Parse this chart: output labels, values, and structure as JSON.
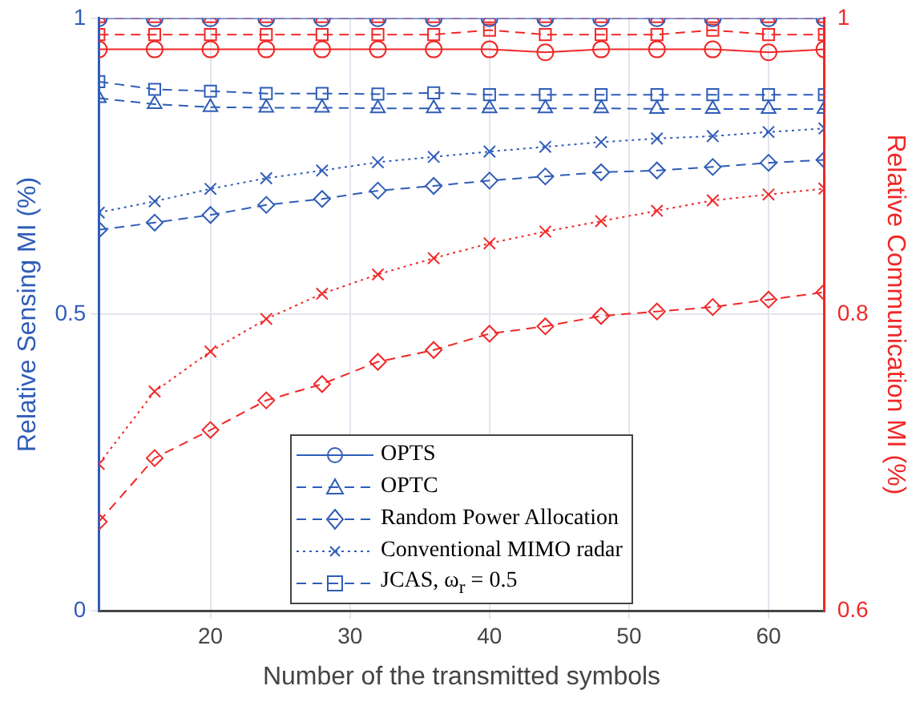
{
  "chart_data": {
    "type": "line",
    "xlabel": "Number of the transmitted symbols",
    "ylabel": "Relative Sensing MI (%)",
    "y2label": "Relative Communication MI (%)",
    "x": [
      12,
      16,
      20,
      24,
      28,
      32,
      36,
      40,
      44,
      48,
      52,
      56,
      60,
      64
    ],
    "xlim": [
      12,
      64
    ],
    "xticks": [
      20,
      30,
      40,
      50,
      60
    ],
    "ylim": [
      0,
      1
    ],
    "yticks": [
      0,
      0.5,
      1
    ],
    "y2lim": [
      0.6,
      1
    ],
    "y2ticks": [
      0.6,
      0.8,
      1
    ],
    "grid": true,
    "legend": "bottom",
    "series": [
      {
        "name": "OPTS",
        "color": "#2f5db8",
        "marker": "circle",
        "line_style": "solid",
        "values": [
          1,
          1,
          1,
          1,
          1,
          1,
          1,
          1,
          1,
          1,
          1,
          1,
          1,
          1
        ]
      },
      {
        "name": "OPTC",
        "color": "#2f5db8",
        "marker": "triangle",
        "line_style": "dashed",
        "values": [
          0.865,
          0.855,
          0.85,
          0.849,
          0.849,
          0.848,
          0.848,
          0.848,
          0.848,
          0.848,
          0.847,
          0.847,
          0.847,
          0.847
        ]
      },
      {
        "name": "Random Power Allocation",
        "color": "#2f5db8",
        "marker": "diamond",
        "line_style": "dashed",
        "values": [
          0.643,
          0.655,
          0.668,
          0.685,
          0.695,
          0.709,
          0.717,
          0.726,
          0.733,
          0.74,
          0.743,
          0.749,
          0.756,
          0.761
        ]
      },
      {
        "name": "Conventional MIMO radar",
        "color": "#2f5db8",
        "marker": "cross",
        "line_style": "dotted",
        "values": [
          0.672,
          0.691,
          0.712,
          0.73,
          0.743,
          0.757,
          0.766,
          0.775,
          0.783,
          0.791,
          0.797,
          0.801,
          0.808,
          0.814
        ]
      },
      {
        "name": "JCAS, ω$_{r}$ = 0.5",
        "color": "#2f5db8",
        "marker": "square",
        "line_style": "dashed",
        "values": [
          0.893,
          0.88,
          0.877,
          0.873,
          0.873,
          0.872,
          0.874,
          0.871,
          0.871,
          0.871,
          0.871,
          0.871,
          0.871,
          0.871
        ]
      },
      {
        "color": "#f02828",
        "axis": "y2",
        "marker": "triangle",
        "line_style": "dashed",
        "values": [
          1,
          1,
          1,
          1,
          1,
          1,
          1,
          1,
          1,
          1,
          1,
          1,
          1,
          1
        ]
      },
      {
        "color": "#f02828",
        "axis": "y2",
        "marker": "square",
        "line_style": "dashed",
        "values": [
          0.989,
          0.989,
          0.989,
          0.989,
          0.989,
          0.989,
          0.989,
          0.992,
          0.989,
          0.989,
          0.989,
          0.992,
          0.989,
          0.989
        ]
      },
      {
        "color": "#f02828",
        "axis": "y2",
        "marker": "circle",
        "line_style": "solid",
        "values": [
          0.979,
          0.979,
          0.979,
          0.979,
          0.979,
          0.979,
          0.979,
          0.979,
          0.977,
          0.979,
          0.979,
          0.979,
          0.977,
          0.979
        ]
      },
      {
        "color": "#f02828",
        "axis": "y2",
        "marker": "cross",
        "line_style": "dotted",
        "values": [
          0.699,
          0.748,
          0.775,
          0.797,
          0.814,
          0.827,
          0.838,
          0.848,
          0.856,
          0.863,
          0.87,
          0.877,
          0.881,
          0.885
        ]
      },
      {
        "color": "#f02828",
        "axis": "y2",
        "marker": "diamond",
        "line_style": "dashed",
        "values": [
          0.66,
          0.703,
          0.722,
          0.742,
          0.753,
          0.768,
          0.776,
          0.787,
          0.792,
          0.799,
          0.802,
          0.805,
          0.81,
          0.815
        ]
      }
    ]
  }
}
